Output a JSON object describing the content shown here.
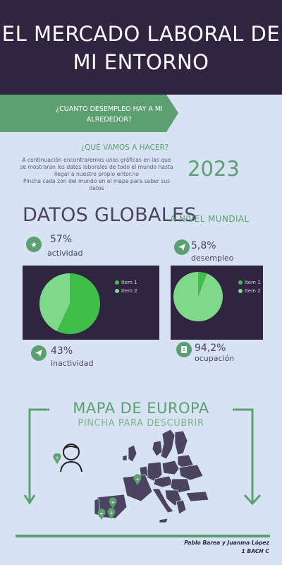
{
  "header": {
    "title_line1": "EL MERCADO LABORAL DE",
    "title_line2": "MI ENTORNO"
  },
  "ribbon": {
    "line1": "¿CUANTO DESEMPLEO HAY A MI",
    "line2": "ALREDEDOR?"
  },
  "intro": {
    "heading": "¿QUÉ VAMOS A HACER?",
    "line1": "A continuación encontraremos unas gráficas en las que",
    "line2": "se mostraran los datos laborales de todo el mundo hasta",
    "line3": "llegar a nuestro propio entor.no",
    "line4": "Pincha cada zon del mundo en el mapa para saber sus",
    "line5": "datos",
    "year": "2023"
  },
  "global": {
    "title": "DATOS GLOBALES",
    "subtitle": "A NIVEL MUNDIAL"
  },
  "stats": {
    "actividad": {
      "value": "57%",
      "label": "actividad",
      "icon": "star-icon"
    },
    "inactividad": {
      "value": "43%",
      "label": "inactividad",
      "icon": "paper-plane-icon"
    },
    "desempleo": {
      "value": "5,8%",
      "label": "desempleo",
      "icon": "paper-plane-icon"
    },
    "ocupacion": {
      "value": "94,2%",
      "label": "ocupación",
      "icon": "document-icon"
    }
  },
  "chart_data": [
    {
      "type": "pie",
      "labels": [
        "Item 1",
        "Item 2"
      ],
      "values": [
        57,
        43
      ],
      "colors": [
        "#3fbf4a",
        "#7fd98a"
      ],
      "legend_position": "right"
    },
    {
      "type": "pie",
      "labels": [
        "Item 1",
        "Item 2"
      ],
      "values": [
        5.8,
        94.2
      ],
      "colors": [
        "#3fbf4a",
        "#7fd98a"
      ],
      "legend_position": "right"
    }
  ],
  "map": {
    "title": "MAPA DE EUROPA",
    "subtitle": "PINCHA PARA DESCUBRIR"
  },
  "credits": {
    "line1": "Pablo Barea y Juanma López",
    "line2": "1 BACH C"
  },
  "colors": {
    "dark": "#2f2540",
    "green": "#5c9f71",
    "background": "#d7e3f2"
  }
}
